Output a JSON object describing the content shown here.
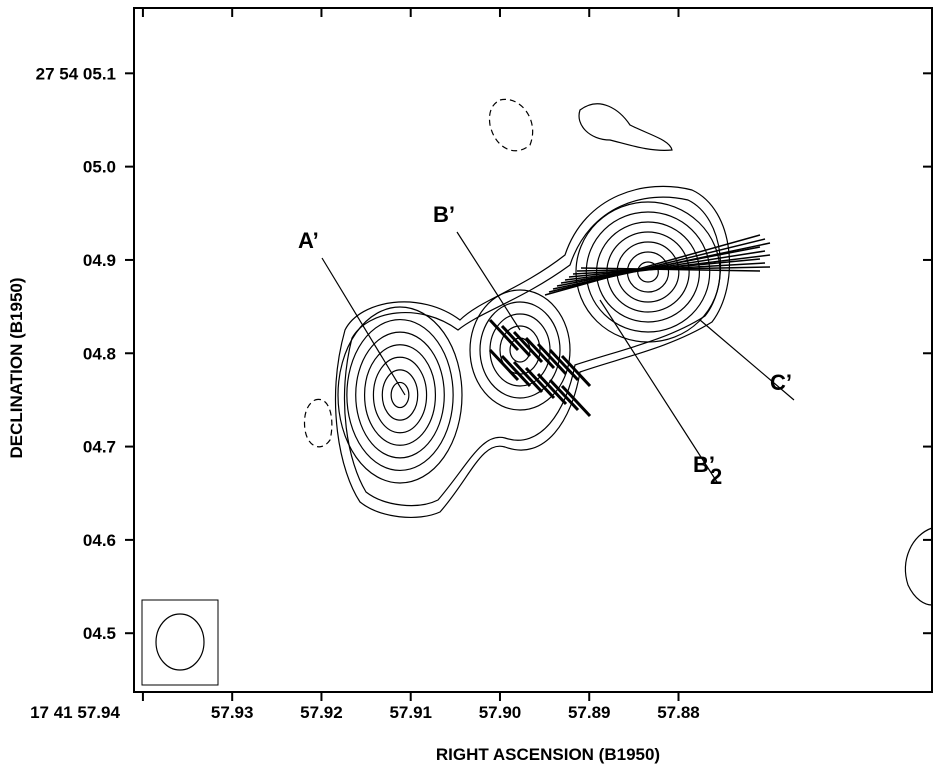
{
  "chart_data": {
    "type": "contour",
    "x_label": "RIGHT ASCENSION (B1950)",
    "y_label": "DECLINATION (B1950)",
    "xlim": [
      57.941,
      57.8516
    ],
    "ylim": [
      4.437,
      5.17
    ],
    "xticks": [
      {
        "value": 57.94,
        "label": "17 41 57.94"
      },
      57.93,
      57.92,
      57.91,
      {
        "value": 57.9,
        "label": "57.90"
      },
      57.89,
      57.88
    ],
    "yticks": [
      {
        "value": 5.1,
        "label": "27 54 05.1"
      },
      {
        "value": 5.0,
        "label": "05.0"
      },
      {
        "value": 4.9,
        "label": "04.9"
      },
      {
        "value": 4.8,
        "label": "04.8"
      },
      {
        "value": 4.7,
        "label": "04.7"
      },
      {
        "value": 4.6,
        "label": "04.6"
      },
      {
        "value": 4.5,
        "label": "04.5"
      }
    ],
    "annotations": [
      {
        "label": "A’"
      },
      {
        "label": "B’"
      },
      {
        "label": "C’"
      },
      {
        "label": "B’",
        "subscript": "2"
      }
    ]
  }
}
